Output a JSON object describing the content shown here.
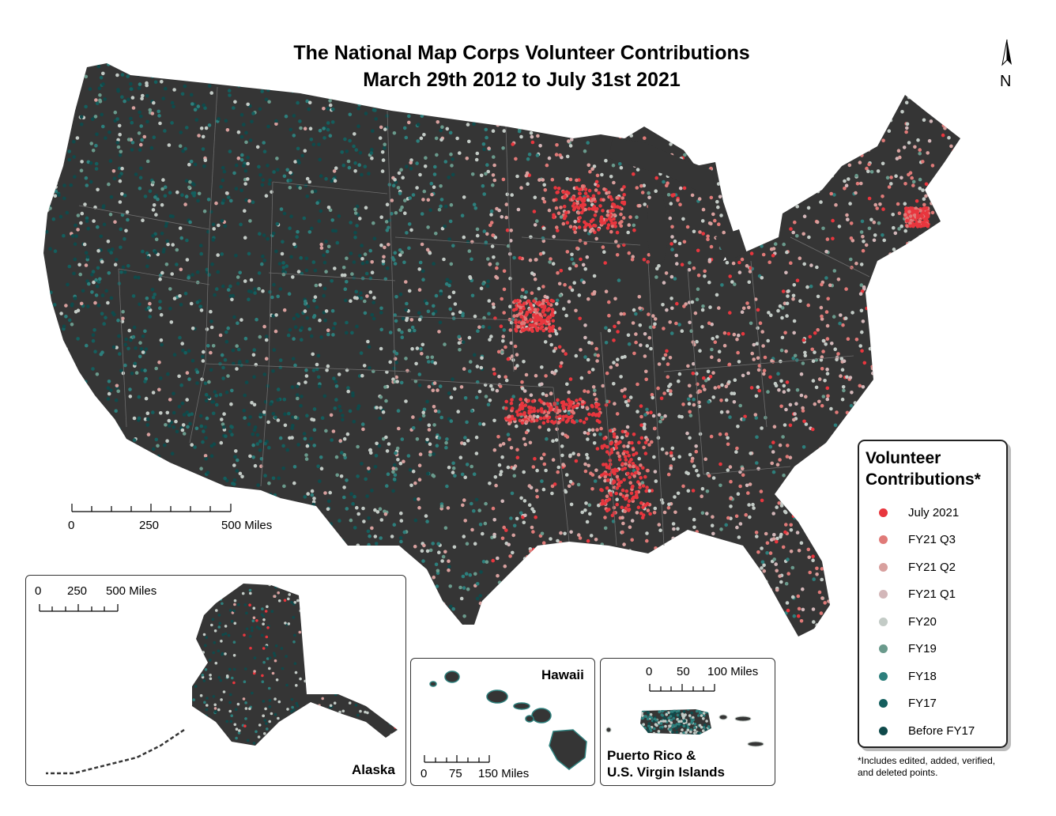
{
  "title": {
    "line1": "The National Map Corps Volunteer Contributions",
    "line2": "March 29th 2012 to July 31st 2021"
  },
  "north_arrow": {
    "letter": "N",
    "icon": "north-arrow-icon"
  },
  "main_scale": {
    "labels": [
      "0",
      "250",
      "500 Miles"
    ]
  },
  "insets": {
    "alaska": {
      "label": "Alaska",
      "scale_labels": [
        "0",
        "250",
        "500 Miles"
      ]
    },
    "hawaii": {
      "label": "Hawaii",
      "scale_labels": [
        "0",
        "75",
        "150 Miles"
      ]
    },
    "puerto_rico": {
      "label_line1": "Puerto Rico &",
      "label_line2": "U.S. Virgin Islands",
      "scale_labels": [
        "0",
        "50",
        "100 Miles"
      ]
    }
  },
  "legend": {
    "title_line1": "Volunteer",
    "title_line2": "Contributions*",
    "items": [
      {
        "label": "July 2021",
        "color": "#e8363e"
      },
      {
        "label": "FY21 Q3",
        "color": "#e07a78"
      },
      {
        "label": "FY21 Q2",
        "color": "#d8a09e"
      },
      {
        "label": "FY21 Q1",
        "color": "#d3b7b9"
      },
      {
        "label": "FY20",
        "color": "#c3cbc6"
      },
      {
        "label": "FY19",
        "color": "#6a9a8c"
      },
      {
        "label": "FY18",
        "color": "#2d7f7c"
      },
      {
        "label": "FY17",
        "color": "#145f5e"
      },
      {
        "label": "Before FY17",
        "color": "#0f4a4b"
      }
    ]
  },
  "footnote": {
    "line1": "*Includes edited, added, verified,",
    "line2": "and deleted points."
  },
  "colors": {
    "land": "#353535",
    "border_lines": "#6d6d6d"
  }
}
